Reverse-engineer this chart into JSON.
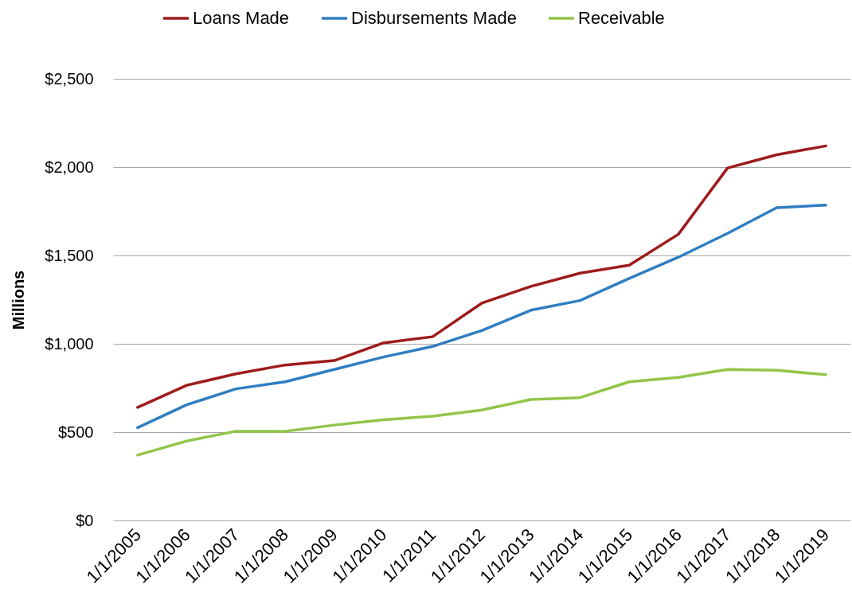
{
  "chart_data": {
    "type": "line",
    "categories": [
      "1/1/2005",
      "1/1/2006",
      "1/1/2007",
      "1/1/2008",
      "1/1/2009",
      "1/1/2010",
      "1/1/2011",
      "1/1/2012",
      "1/1/2013",
      "1/1/2014",
      "1/1/2015",
      "1/1/2016",
      "1/1/2017",
      "1/1/2018",
      "1/1/2019"
    ],
    "series": [
      {
        "name": "Loans Made",
        "color": "#9e1b1b",
        "values": [
          640,
          765,
          830,
          880,
          905,
          1005,
          1040,
          1230,
          1325,
          1400,
          1445,
          1620,
          1995,
          2070,
          2120
        ]
      },
      {
        "name": "Disbursements Made",
        "color": "#2f7ec1",
        "values": [
          525,
          655,
          745,
          785,
          855,
          925,
          985,
          1075,
          1190,
          1245,
          1370,
          1490,
          1625,
          1770,
          1785
        ]
      },
      {
        "name": "Receivable",
        "color": "#92c54a",
        "values": [
          370,
          450,
          505,
          505,
          540,
          570,
          590,
          625,
          685,
          695,
          785,
          810,
          855,
          850,
          825
        ]
      }
    ],
    "ylabel": "Millions",
    "ylim": [
      0,
      2500
    ],
    "yticks": [
      {
        "value": 0,
        "label": "$0"
      },
      {
        "value": 500,
        "label": "$500"
      },
      {
        "value": 1000,
        "label": "$1,000"
      },
      {
        "value": 1500,
        "label": "$1,500"
      },
      {
        "value": 2000,
        "label": "$2,000"
      },
      {
        "value": 2500,
        "label": "$2,500"
      }
    ],
    "grid": "y",
    "legend": "top"
  }
}
